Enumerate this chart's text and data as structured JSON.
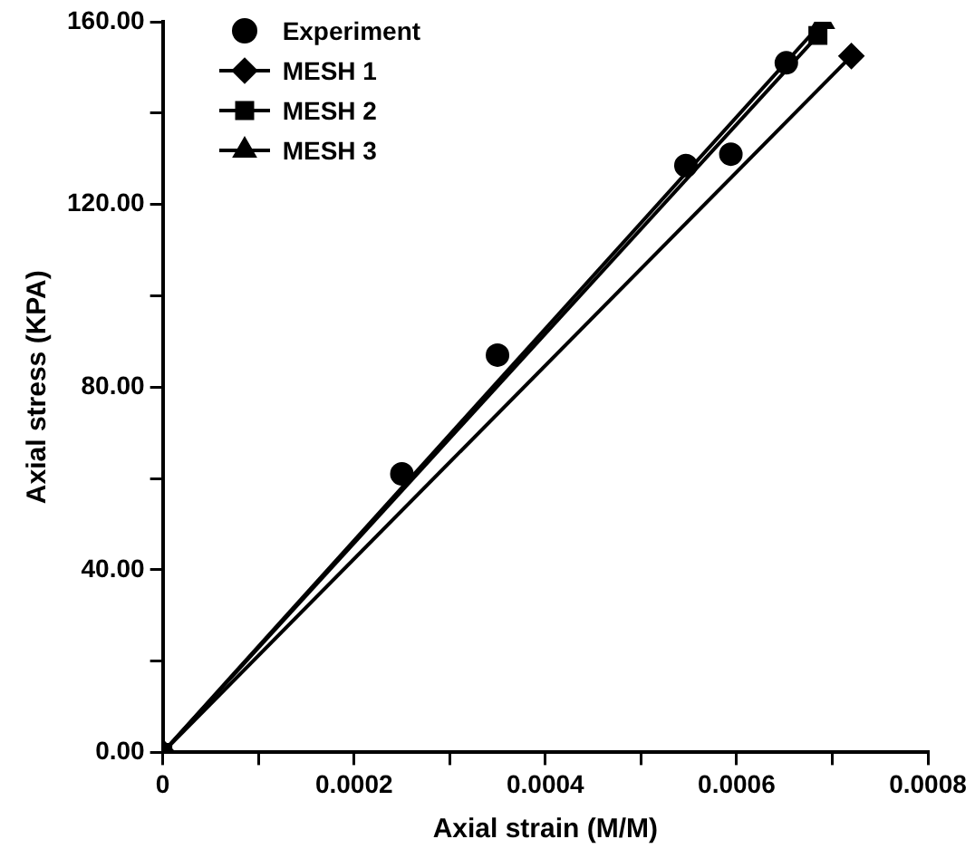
{
  "chart_data": {
    "type": "line",
    "xlabel": "Axial strain (M/M)",
    "ylabel": "Axial stress (KPA)",
    "xlim": [
      0,
      0.0008
    ],
    "ylim": [
      0,
      160
    ],
    "xticks": [
      0,
      {
        "value": 0.0001,
        "label": null
      },
      0.0002,
      {
        "value": 0.0003,
        "label": null
      },
      0.0004,
      {
        "value": 0.0005,
        "label": null
      },
      0.0006,
      {
        "value": 0.0007,
        "label": null
      },
      0.0008
    ],
    "yticks": [
      {
        "value": 0,
        "label": "0.00"
      },
      {
        "value": 20,
        "label": null
      },
      {
        "value": 40,
        "label": "40.00"
      },
      {
        "value": 60,
        "label": null
      },
      {
        "value": 80,
        "label": "80.00"
      },
      {
        "value": 100,
        "label": null
      },
      {
        "value": 120,
        "label": "120.00"
      },
      {
        "value": 140,
        "label": null
      },
      {
        "value": 160,
        "label": "160.00"
      }
    ],
    "grid": false,
    "legend": "top left",
    "series": [
      {
        "name": "Experiment",
        "type": "scatter",
        "marker": "circle",
        "color": "#000000",
        "x": [
          0.00025,
          0.00035,
          0.000547,
          0.000594,
          0.000652
        ],
        "values": [
          61,
          87,
          128.5,
          131,
          151
        ]
      },
      {
        "name": "MESH 1",
        "type": "line",
        "marker": "diamond",
        "color": "#000000",
        "x": [
          0,
          0.00072
        ],
        "values": [
          0,
          152.5
        ]
      },
      {
        "name": "MESH 2",
        "type": "line",
        "marker": "square",
        "color": "#000000",
        "x": [
          0,
          0.000685
        ],
        "values": [
          0,
          157
        ]
      },
      {
        "name": "MESH 3",
        "type": "line",
        "marker": "triangle",
        "color": "#000000",
        "x": [
          0,
          0.00069
        ],
        "values": [
          0,
          160
        ]
      }
    ]
  }
}
